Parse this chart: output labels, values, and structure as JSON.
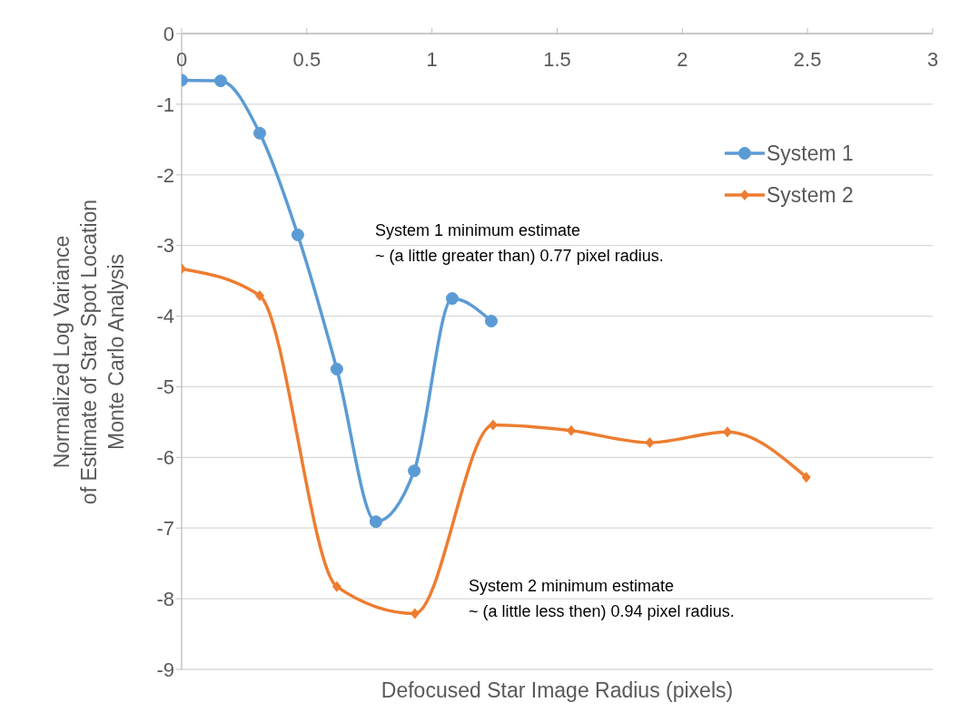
{
  "chart_data": {
    "type": "line",
    "xlabel": "Defocused Star Image Radius (pixels)",
    "ylabel": "Normalized Log Variance\nof Estimate of Star Spot Location\nMonte Carlo Analysis",
    "xlim": [
      0,
      3
    ],
    "xticks": [
      0,
      0.5,
      1,
      1.5,
      2,
      2.5,
      3
    ],
    "ylim": [
      -9,
      0
    ],
    "yticks": [
      -9,
      -8,
      -7,
      -6,
      -5,
      -4,
      -3,
      -2,
      -1,
      0
    ],
    "grid": "y",
    "legend": "right",
    "series": [
      {
        "name": "System 1",
        "color": "#5b9bd5",
        "marker": "circle",
        "x": [
          0,
          0.156,
          0.312,
          0.464,
          0.62,
          0.776,
          0.929,
          1.081,
          1.237
        ],
        "values": [
          -0.66,
          -0.67,
          -1.41,
          -2.85,
          -4.75,
          -6.91,
          -6.19,
          -3.75,
          -4.07
        ]
      },
      {
        "name": "System 2",
        "color": "#ed7d31",
        "marker": "diamond",
        "x": [
          0,
          0.312,
          0.62,
          0.932,
          1.244,
          1.556,
          1.87,
          2.18,
          2.495
        ],
        "values": [
          -3.33,
          -3.71,
          -7.83,
          -8.21,
          -5.54,
          -5.62,
          -5.79,
          -5.64,
          -6.28
        ]
      }
    ],
    "annotations": [
      "System 1 minimum estimate\n~ (a little greater than) 0.77 pixel radius.",
      "System 2 minimum estimate\n~ (a little less then) 0.94 pixel radius."
    ]
  }
}
